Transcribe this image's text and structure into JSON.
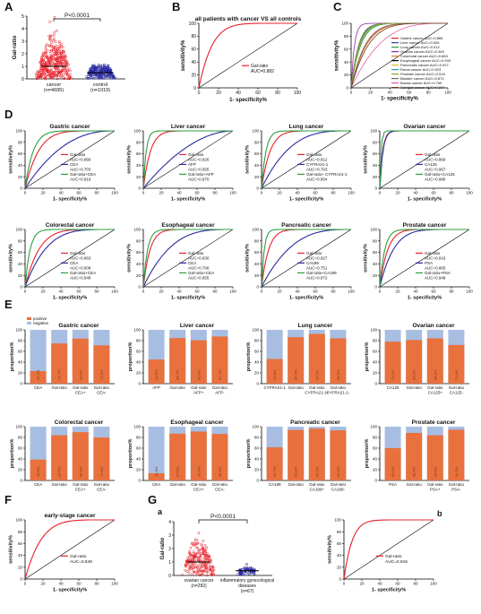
{
  "panel_letters": [
    "A",
    "B",
    "C",
    "D",
    "E",
    "F",
    "G"
  ],
  "chart_data": [
    {
      "id": "A",
      "type": "scatter",
      "ylabel": "Gal-ratio",
      "yticks": [
        0,
        1,
        2,
        3,
        4,
        5
      ],
      "ylim": [
        0,
        5
      ],
      "categories": [
        "cancer",
        "control"
      ],
      "category_counts": [
        "(n=4695)",
        "(n=1019)"
      ],
      "medians": [
        1.0,
        0.5
      ],
      "significance": "P<0.0001",
      "colors": [
        "#e8202a",
        "#2a2aa0"
      ]
    },
    {
      "id": "B",
      "type": "line",
      "title": "all patients with cancer VS all controls",
      "xlabel": "1- specificity%",
      "ylabel": "sensitivity%",
      "ticks": [
        0,
        20,
        40,
        60,
        80,
        100
      ],
      "series": [
        {
          "name": "Gal-ratio",
          "auc": "AUC=0.882",
          "color": "#e8202a"
        }
      ]
    },
    {
      "id": "C",
      "type": "line",
      "xlabel": "1- specificity%",
      "ylabel": "sensitivity%",
      "ticks": [
        0,
        20,
        40,
        60,
        80,
        100
      ],
      "series": [
        {
          "name": "Gastric cancer AUC=0.866",
          "color": "#e8202a"
        },
        {
          "name": "Liver cancer AUC=0.926",
          "color": "#3a3a9a"
        },
        {
          "name": "Lung cancer AUC=0.912",
          "color": "#2aa040"
        },
        {
          "name": "Ovarian cancer AUC=0.969",
          "color": "#8a2aa0"
        },
        {
          "name": "Colorectal cancer AUC=0.863",
          "color": "#e08020"
        },
        {
          "name": "Esophageal cancer AUC=0.930",
          "color": "#000000"
        },
        {
          "name": "Pancreatic cancer AUC=0.927",
          "color": "#e0c020"
        },
        {
          "name": "Renal cancer AUC=0.923",
          "color": "#20a0c0"
        },
        {
          "name": "Prostate cancer AUC=0.918",
          "color": "#a0a020"
        },
        {
          "name": "Bladder cancer AUC=0.874",
          "color": "#6a6a6a"
        },
        {
          "name": "Breast cancer AUC=0.765",
          "color": "#e060a0"
        },
        {
          "name": "Cervical cancer AUC=0.847",
          "color": "#6a3a20"
        }
      ]
    },
    {
      "id": "D1",
      "type": "line",
      "title": "Gastric cancer",
      "xlabel": "1- specificity%",
      "ylabel": "sensitivity%",
      "ticks": [
        0,
        20,
        40,
        60,
        80,
        100
      ],
      "series": [
        {
          "name": "Gal-ratio",
          "auc": "AUC=0.866",
          "color": "#e8202a"
        },
        {
          "name": "CEA",
          "auc": "AUC=0.703",
          "color": "#2a2aa0"
        },
        {
          "name": "Gal-ratio+CEA",
          "auc": "AUC=0.916",
          "color": "#2aa040"
        }
      ]
    },
    {
      "id": "D2",
      "type": "line",
      "title": "Liver cancer",
      "xlabel": "1- specificity%",
      "ylabel": "sensitivity%",
      "ticks": [
        0,
        20,
        40,
        60,
        80,
        100
      ],
      "series": [
        {
          "name": "Gal-ratio",
          "auc": "AUC=0.926",
          "color": "#e8202a"
        },
        {
          "name": "AFP",
          "auc": "AUC=0.655",
          "color": "#2a2aa0"
        },
        {
          "name": "Gal-ratio+AFP",
          "auc": "AUC=0.970",
          "color": "#2aa040"
        }
      ]
    },
    {
      "id": "D3",
      "type": "line",
      "title": "Lung cancer",
      "xlabel": "1- specificity%",
      "ylabel": "sensitivity%",
      "ticks": [
        0,
        20,
        40,
        60,
        80,
        100
      ],
      "series": [
        {
          "name": "Gal-ratio",
          "auc": "AUC=0.912",
          "color": "#e8202a"
        },
        {
          "name": "CYFRA21-1",
          "auc": "AUC=0.763",
          "color": "#2a2aa0"
        },
        {
          "name": "Gal-ratio+ CYFRA21-1",
          "auc": "AUC=0.954",
          "color": "#2aa040"
        }
      ]
    },
    {
      "id": "D4",
      "type": "line",
      "title": "Ovarian cancer",
      "xlabel": "1- specificity%",
      "ylabel": "sensitivity%",
      "ticks": [
        0,
        20,
        40,
        60,
        80,
        100
      ],
      "series": [
        {
          "name": "Gal-ratio",
          "auc": "AUC=0.969",
          "color": "#e8202a"
        },
        {
          "name": "CA125",
          "auc": "AUC=0.967",
          "color": "#2a2aa0"
        },
        {
          "name": "Gal-ratio+CA125",
          "auc": "AUC=0.986",
          "color": "#2aa040"
        }
      ]
    },
    {
      "id": "D5",
      "type": "line",
      "title": "Colorectal cancer",
      "xlabel": "1- specificity%",
      "ylabel": "sensitivity%",
      "ticks": [
        0,
        20,
        40,
        60,
        80,
        100
      ],
      "series": [
        {
          "name": "Gal-ratio",
          "auc": "AUC=0.863",
          "color": "#e8202a"
        },
        {
          "name": "CEA",
          "auc": "AUC=0.808",
          "color": "#2a2aa0"
        },
        {
          "name": "Gal-ratio+CEA",
          "auc": "AUC=0.948",
          "color": "#2aa040"
        }
      ]
    },
    {
      "id": "D6",
      "type": "line",
      "title": "Esophageal cancer",
      "xlabel": "1- specificity%",
      "ylabel": "sensitivity%",
      "ticks": [
        0,
        20,
        40,
        60,
        80,
        100
      ],
      "series": [
        {
          "name": "Gal-ratio",
          "auc": "AUC=0.930",
          "color": "#e8202a"
        },
        {
          "name": "CEA",
          "auc": "AUC=0.766",
          "color": "#2a2aa0"
        },
        {
          "name": "Gal-ratio+CEA",
          "auc": "AUC=0.955",
          "color": "#2aa040"
        }
      ]
    },
    {
      "id": "D7",
      "type": "line",
      "title": "Pancreatic cancer",
      "xlabel": "1- specificity%",
      "ylabel": "sensitivity%",
      "ticks": [
        0,
        20,
        40,
        60,
        80,
        100
      ],
      "series": [
        {
          "name": "Gal-ratio",
          "auc": "AUC=0.927",
          "color": "#e8202a"
        },
        {
          "name": "CA199",
          "auc": "AUC=0.751",
          "color": "#2a2aa0"
        },
        {
          "name": "Gal-ratio+CA199",
          "auc": "AUC=0.972",
          "color": "#2aa040"
        }
      ]
    },
    {
      "id": "D8",
      "type": "line",
      "title": "Prostate cancer",
      "xlabel": "1- specificity%",
      "ylabel": "sensitivity%",
      "ticks": [
        0,
        20,
        40,
        60,
        80,
        100
      ],
      "series": [
        {
          "name": "Gal-ratio",
          "auc": "AUC=0.918",
          "color": "#e8202a"
        },
        {
          "name": "PSA",
          "auc": "AUC=0.865",
          "color": "#2a2aa0"
        },
        {
          "name": "Gal-ratio+PSA",
          "auc": "AUC=0.948",
          "color": "#2aa040"
        }
      ]
    },
    {
      "id": "E1",
      "type": "bar",
      "title": "Gastric cancer",
      "ylabel": "proportion%",
      "yticks": [
        0,
        20,
        40,
        60,
        80,
        100
      ],
      "legend": [
        "positive",
        "negative"
      ],
      "categories": [
        "CEA",
        "Gal-ratio",
        "Gal-ratio CEA+",
        "Gal-ratio CEA-"
      ],
      "values": [
        23.3,
        74.7,
        83.8,
        71.1
      ],
      "labels": [
        "23.3%",
        "74.7%",
        "83.8%",
        "71.1%"
      ],
      "colors": {
        "positive": "#e8713d",
        "negative": "#a8bde2"
      }
    },
    {
      "id": "E2",
      "type": "bar",
      "title": "Liver cancer",
      "ylabel": "proportion%",
      "yticks": [
        0,
        20,
        40,
        60,
        80,
        100
      ],
      "categories": [
        "AFP",
        "Gal-ratio",
        "Gal-ratio AFP+",
        "Gal-ratio AFP-"
      ],
      "values": [
        44.8,
        84.7,
        80.6,
        87.7
      ],
      "labels": [
        "44.8%",
        "84.7%",
        "80.6%",
        "87.7%"
      ]
    },
    {
      "id": "E3",
      "type": "bar",
      "title": "Lung cancer",
      "ylabel": "proportion%",
      "yticks": [
        0,
        20,
        40,
        60,
        80,
        100
      ],
      "categories": [
        "CYFRA21-1",
        "Gal-ratio",
        "Gal-ratio CYFRA21-1+",
        "Gal-ratio CYFRA21-1-"
      ],
      "values": [
        45.8,
        86.4,
        92.5,
        84.3
      ],
      "labels": [
        "45.8%",
        "86.4%",
        "92.5%",
        "84.3%"
      ]
    },
    {
      "id": "E4",
      "type": "bar",
      "title": "Ovarian cancer",
      "ylabel": "proportion%",
      "yticks": [
        0,
        20,
        40,
        60,
        80,
        100
      ],
      "categories": [
        "CA125",
        "Gal-ratio",
        "Gal-ratio CA125+",
        "Gal-ratio CA125-"
      ],
      "values": [
        78.1,
        81.0,
        84.1,
        71.8
      ],
      "labels": [
        "78.1%",
        "81.0%",
        "84.1%",
        "71.8%"
      ]
    },
    {
      "id": "E5",
      "type": "bar",
      "title": "Colorectal cancer",
      "ylabel": "proportion%",
      "yticks": [
        0,
        20,
        40,
        60,
        80,
        100
      ],
      "categories": [
        "CEA",
        "Gal-ratio",
        "Gal-ratio CEA+",
        "Gal-ratio CEA-"
      ],
      "values": [
        38.8,
        84.0,
        89.8,
        79.8
      ],
      "labels": [
        "38.8%",
        "84.0%",
        "89.8%",
        "79.8%"
      ]
    },
    {
      "id": "E6",
      "type": "bar",
      "title": "Esophageal cancer",
      "ylabel": "proportion%",
      "yticks": [
        0,
        20,
        40,
        60,
        80,
        100
      ],
      "categories": [
        "CEA",
        "Gal-ratio",
        "Gal-ratio CEA+",
        "Gal-ratio CEA-"
      ],
      "values": [
        13.3,
        87.0,
        90.9,
        86.5
      ],
      "labels": [
        "13.3%",
        "87.0%",
        "90.9%",
        "86.5%"
      ]
    },
    {
      "id": "E7",
      "type": "bar",
      "title": "Pancreatic cancer",
      "ylabel": "proportion%",
      "yticks": [
        0,
        20,
        40,
        60,
        80,
        100
      ],
      "categories": [
        "CA199",
        "Gal-ratio",
        "Gal-ratio CA199+",
        "Gal-ratio CA199-"
      ],
      "values": [
        61.7,
        93.9,
        96.4,
        93.1
      ],
      "labels": [
        "61.7%",
        "93.9%",
        "96.4%",
        "93.1%"
      ]
    },
    {
      "id": "E8",
      "type": "bar",
      "title": "Prostate cancer",
      "ylabel": "proportion%",
      "yticks": [
        0,
        20,
        40,
        60,
        80,
        100
      ],
      "categories": [
        "PSA",
        "Gal-ratio",
        "Gal-ratio PSA+",
        "Gal-ratio PSA-"
      ],
      "values": [
        60.2,
        88.4,
        84.0,
        94.3
      ],
      "labels": [
        "60.2%",
        "88.4%",
        "84.0%",
        "94.3%"
      ]
    },
    {
      "id": "F",
      "type": "line",
      "title": "early-stage cancer",
      "xlabel": "1- specificity%",
      "ylabel": "sensitivity%",
      "ticks": [
        0,
        20,
        40,
        60,
        80,
        100
      ],
      "series": [
        {
          "name": "Gal-ratio",
          "auc": "AUC=0.848",
          "color": "#e8202a"
        }
      ]
    },
    {
      "id": "Ga",
      "type": "scatter",
      "sublabel": "a",
      "ylabel": "Gal-ratio",
      "yticks": [
        0,
        1,
        2,
        3,
        4
      ],
      "ylim": [
        0,
        4
      ],
      "categories": [
        "ovarian cancer",
        "inflammatory gynecological diseases"
      ],
      "category_counts": [
        "(n=282)",
        "(n=67)"
      ],
      "medians": [
        1.0,
        0.35
      ],
      "significance": "P<0.0001"
    },
    {
      "id": "Gb",
      "type": "line",
      "sublabel": "b",
      "xlabel": "1- specificity%",
      "ylabel": "sensitivity%",
      "ticks": [
        0,
        20,
        40,
        60,
        80,
        100
      ],
      "series": [
        {
          "name": "Gal-ratio",
          "auc": "AUC=0.916",
          "color": "#e8202a"
        }
      ]
    }
  ]
}
